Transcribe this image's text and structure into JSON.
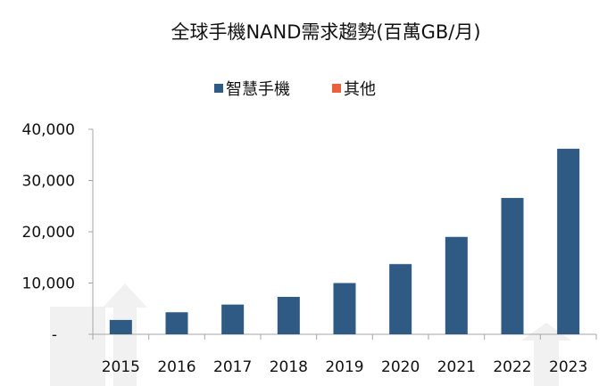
{
  "chart_data": {
    "type": "bar",
    "title": "全球手機NAND需求趨勢(百萬GB/月)",
    "categories": [
      "2015",
      "2016",
      "2017",
      "2018",
      "2019",
      "2020",
      "2021",
      "2022",
      "2023"
    ],
    "series": [
      {
        "name": "智慧手機",
        "color": "#2e5a84",
        "values": [
          2800,
          4300,
          5800,
          7300,
          10000,
          13700,
          19000,
          26600,
          36200
        ]
      },
      {
        "name": "其他",
        "color": "#e8603c",
        "values": [
          0,
          0,
          0,
          0,
          0,
          0,
          0,
          0,
          0
        ]
      }
    ],
    "yticks": [
      "-",
      "10,000",
      "20,000",
      "30,000",
      "40,000"
    ],
    "ylim": [
      0,
      40000
    ],
    "legend_position": "top",
    "grid": false
  }
}
